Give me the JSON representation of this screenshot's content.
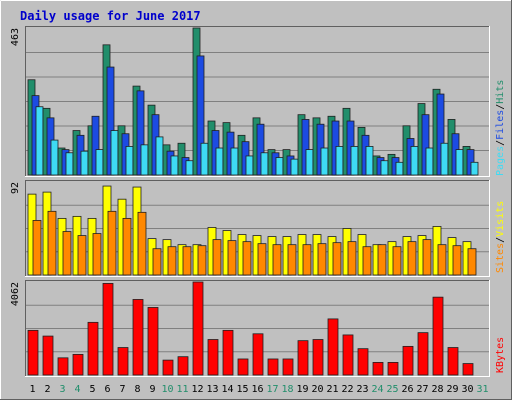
{
  "chart_data": {
    "type": "bar",
    "title": "Daily usage for June 2017",
    "categories": [
      "1",
      "2",
      "3",
      "4",
      "5",
      "6",
      "7",
      "8",
      "9",
      "10",
      "11",
      "12",
      "13",
      "14",
      "15",
      "16",
      "17",
      "18",
      "19",
      "20",
      "21",
      "22",
      "23",
      "24",
      "25",
      "26",
      "27",
      "28",
      "29",
      "30",
      "31"
    ],
    "weekend_days": [
      "3",
      "4",
      "10",
      "11",
      "17",
      "18",
      "24",
      "25",
      "31"
    ],
    "panels": [
      {
        "name": "pages-files-hits",
        "ymax_label": "463",
        "ymax": 463,
        "ylabel_parts": [
          "Pages",
          "Files",
          "Hits"
        ],
        "series": [
          {
            "name": "Hits",
            "color": "#218e6b",
            "values": [
              300,
              210,
              85,
              140,
              155,
              410,
              155,
              280,
              220,
              95,
              100,
              463,
              170,
              165,
              125,
              180,
              80,
              80,
              190,
              180,
              185,
              210,
              150,
              60,
              65,
              155,
              225,
              270,
              175,
              90,
              0
            ]
          },
          {
            "name": "Files",
            "color": "#1c4be2",
            "values": [
              250,
              180,
              80,
              125,
              185,
              340,
              130,
              265,
              190,
              75,
              55,
              375,
              140,
              135,
              105,
              160,
              70,
              60,
              175,
              160,
              170,
              170,
              125,
              55,
              55,
              115,
              190,
              255,
              130,
              80,
              0
            ]
          },
          {
            "name": "Pages",
            "color": "#3edbf4",
            "values": [
              215,
              110,
              70,
              75,
              80,
              140,
              90,
              95,
              120,
              60,
              45,
              100,
              85,
              85,
              60,
              70,
              55,
              50,
              80,
              85,
              90,
              90,
              90,
              45,
              40,
              90,
              85,
              100,
              80,
              40,
              0
            ]
          }
        ]
      },
      {
        "name": "visits-sites",
        "ymax_label": "92",
        "ymax": 92,
        "ylabel_parts": [
          "Sites",
          "Visits"
        ],
        "series": [
          {
            "name": "Visits",
            "color": "#ffff00",
            "values": [
              80,
              82,
              56,
              58,
              56,
              88,
              75,
              87,
              36,
              35,
              30,
              30,
              47,
              44,
              40,
              39,
              38,
              38,
              40,
              40,
              38,
              46,
              40,
              30,
              33,
              38,
              39,
              48,
              37,
              33,
              0
            ]
          },
          {
            "name": "Sites",
            "color": "#ff8800",
            "values": [
              54,
              63,
              43,
              39,
              41,
              63,
              56,
              62,
              26,
              28,
              28,
              29,
              35,
              34,
              33,
              31,
              30,
              30,
              30,
              31,
              32,
              33,
              28,
              30,
              28,
              33,
              35,
              30,
              29,
              26,
              0
            ]
          }
        ]
      },
      {
        "name": "kbytes",
        "ymax_label": "4062",
        "ymax": 4062,
        "ylabel_parts": [
          "KBytes"
        ],
        "series": [
          {
            "name": "KBytes",
            "color": "#ff0000",
            "values": [
              1950,
              1700,
              750,
              900,
              2300,
              4000,
              1200,
              3300,
              2950,
              650,
              800,
              4062,
              1550,
              1950,
              700,
              1800,
              700,
              700,
              1500,
              1550,
              2450,
              1750,
              1150,
              550,
              550,
              1250,
              1850,
              3400,
              1200,
              500,
              0
            ]
          }
        ]
      }
    ]
  }
}
